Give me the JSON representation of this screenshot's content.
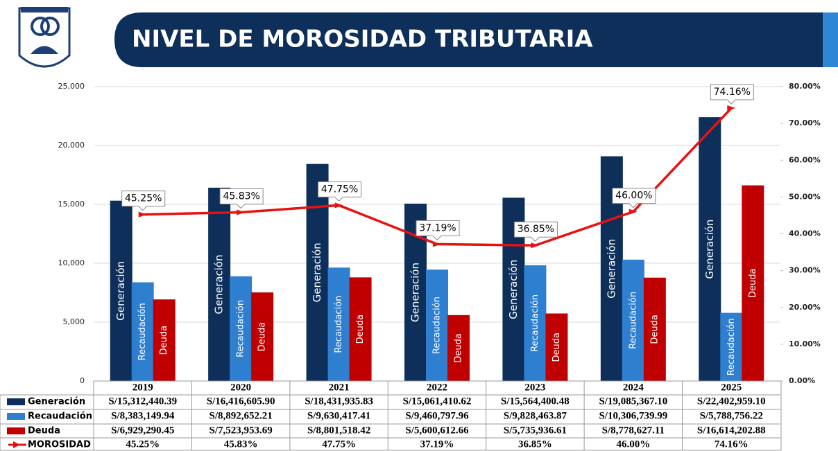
{
  "chart_data": {
    "type": "bar",
    "title": "NIVEL DE MOROSIDAD TRIBUTARIA",
    "categories": [
      "2019",
      "2020",
      "2021",
      "2022",
      "2023",
      "2024",
      "2025"
    ],
    "series": [
      {
        "name": "Generación",
        "color": "#0d2f5a",
        "values": [
          15312.44039,
          16416.6059,
          18431.93583,
          15061.41062,
          15564.40048,
          19085.3671,
          22402.9591
        ],
        "value_labels": [
          "S/15,312,440.39",
          "S/16,416,605.90",
          "S/18,431,935.83",
          "S/15,061,410.62",
          "S/15,564,400.48",
          "S/19,085,367.10",
          "S/22,402,959.10"
        ]
      },
      {
        "name": "Recaudación",
        "color": "#2e7fd0",
        "values": [
          8383.14994,
          8892.65221,
          9630.41741,
          9460.79796,
          9828.46387,
          10306.73999,
          5788.75622
        ],
        "value_labels": [
          "S/8,383,149.94",
          "S/8,892,652.21",
          "S/9,630,417.41",
          "S/9,460,797.96",
          "S/9,828,463.87",
          "S/10,306,739.99",
          "S/5,788,756.22"
        ]
      },
      {
        "name": "Deuda",
        "color": "#c00000",
        "values": [
          6929.29045,
          7523.95369,
          8801.51842,
          5600.61266,
          5735.93661,
          8778.62711,
          16614.20288
        ],
        "value_labels": [
          "S/6,929,290.45",
          "S/7,523,953.69",
          "S/8,801,518.42",
          "S/5,600,612.66",
          "S/5,735,936.61",
          "S/8,778,627.11",
          "S/16,614,202.88"
        ]
      },
      {
        "name": "MOROSIDAD",
        "type": "line",
        "axis": "y2",
        "color": "#e81010",
        "values": [
          45.25,
          45.83,
          47.75,
          37.19,
          36.85,
          46.0,
          74.16
        ],
        "value_labels": [
          "45.25%",
          "45.83%",
          "47.75%",
          "37.19%",
          "36.85%",
          "46.00%",
          "74.16%"
        ]
      }
    ],
    "ylim": [
      0,
      25000
    ],
    "yticks": [
      0,
      {
        "value": 5000,
        "label": "5,000"
      },
      {
        "value": 10000,
        "label": "10,000"
      },
      {
        "value": 15000,
        "label": "15,000"
      },
      {
        "value": 20000,
        "label": "20,000"
      },
      {
        "value": 25000,
        "label": "25,000"
      }
    ],
    "y2lim": [
      0,
      80
    ],
    "y2ticks": [
      {
        "value": 0,
        "label": "0.00%"
      },
      {
        "value": 10,
        "label": "10.00%"
      },
      {
        "value": 20,
        "label": "20.00%"
      },
      {
        "value": 30,
        "label": "30.00%"
      },
      {
        "value": 40,
        "label": "40.00%"
      },
      {
        "value": 50,
        "label": "50.00%"
      },
      {
        "value": 60,
        "label": "60.00%"
      },
      {
        "value": 70,
        "label": "70.00%"
      },
      {
        "value": 80,
        "label": "80.00%"
      }
    ],
    "grid": true
  }
}
